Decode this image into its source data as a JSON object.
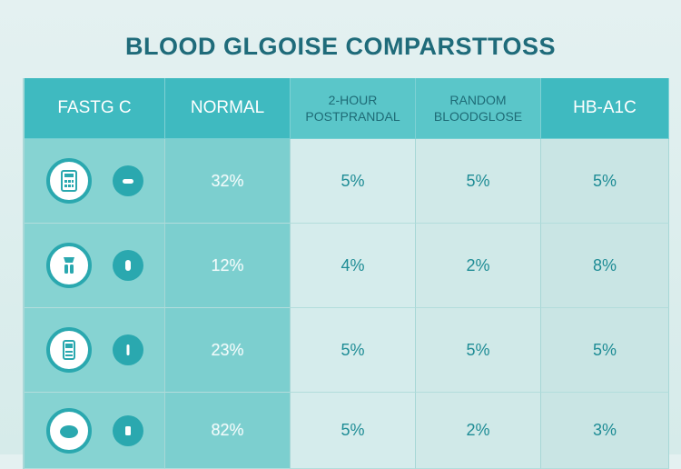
{
  "title": "BLOOD GLGOISE COMPARSTTOSS",
  "headers": [
    {
      "line1": "FASTG C",
      "line2": ""
    },
    {
      "line1": "NORMAL",
      "line2": ""
    },
    {
      "line1": "2-HOUR",
      "line2": "POSTPRANDAL"
    },
    {
      "line1": "RANDOM",
      "line2": "BLOODGLOSE"
    },
    {
      "line1": "HB-A1C",
      "line2": ""
    }
  ],
  "rows": [
    {
      "icons": [
        "calculator-icon",
        "pill-icon"
      ],
      "values": [
        "32%",
        "5%",
        "5%",
        "5%"
      ]
    },
    {
      "icons": [
        "glucometer-icon",
        "drop-icon"
      ],
      "values": [
        "12%",
        "4%",
        "2%",
        "8%"
      ]
    },
    {
      "icons": [
        "meter-device-icon",
        "strip-icon"
      ],
      "values": [
        "23%",
        "5%",
        "5%",
        "5%"
      ]
    },
    {
      "icons": [
        "plate-icon",
        "test-icon"
      ],
      "values": [
        "82%",
        "5%",
        "2%",
        "3%"
      ]
    }
  ],
  "colors": {
    "title": "#1f6b7a",
    "header_bg": "#3fbac0",
    "accent": "#2aa8af",
    "value_text": "#1e8c95"
  }
}
